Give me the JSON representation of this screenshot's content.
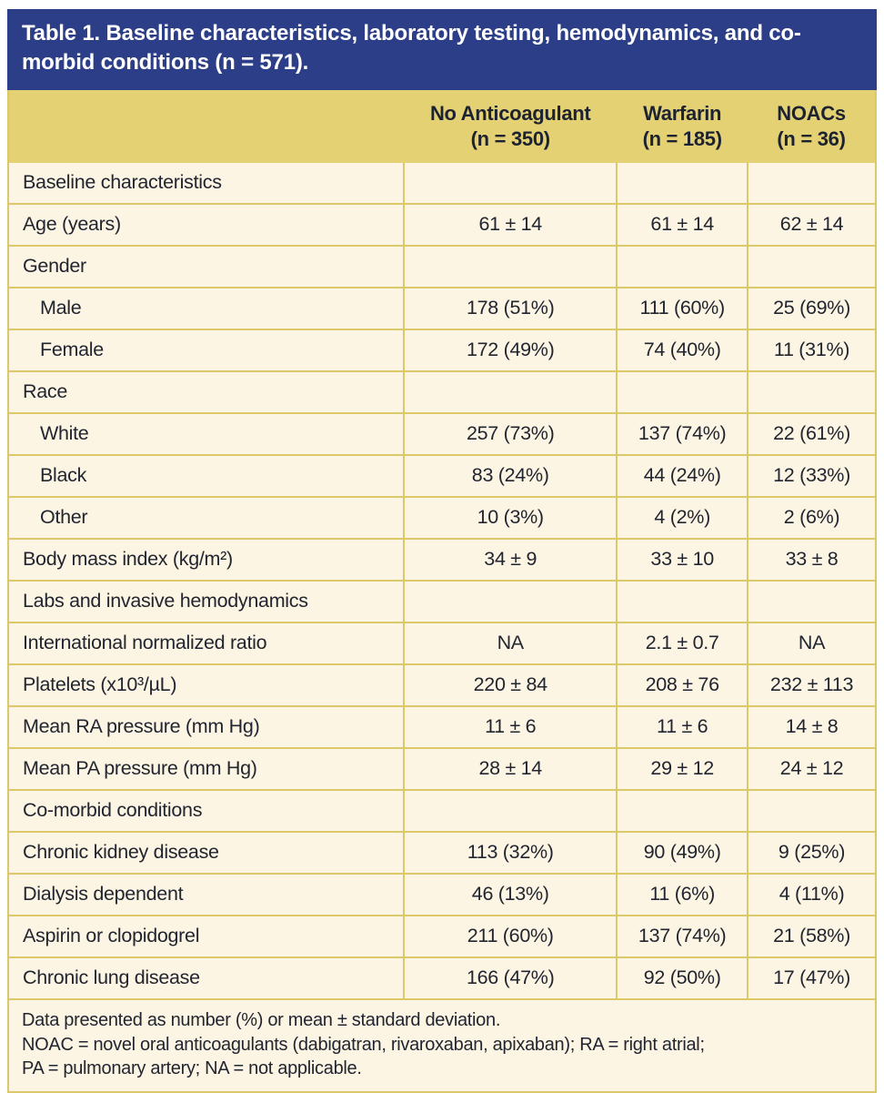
{
  "title": "Table 1. Baseline characteristics, laboratory testing, hemodynamics, and co-morbid conditions (n = 571).",
  "table": {
    "columns": [
      {
        "label": "No Anticoagulant",
        "sub": "(n = 350)"
      },
      {
        "label": "Warfarin",
        "sub": "(n = 185)"
      },
      {
        "label": "NOACs",
        "sub": "(n = 36)"
      }
    ],
    "rows": [
      {
        "label": "Baseline characteristics",
        "section": true,
        "indent": false,
        "values": [
          "",
          "",
          ""
        ]
      },
      {
        "label": "Age (years)",
        "section": false,
        "indent": false,
        "values": [
          "61 ± 14",
          "61 ± 14",
          "62 ± 14"
        ]
      },
      {
        "label": "Gender",
        "section": true,
        "indent": false,
        "values": [
          "",
          "",
          ""
        ]
      },
      {
        "label": "Male",
        "section": false,
        "indent": true,
        "values": [
          "178 (51%)",
          "111 (60%)",
          "25 (69%)"
        ]
      },
      {
        "label": "Female",
        "section": false,
        "indent": true,
        "values": [
          "172 (49%)",
          "74 (40%)",
          "11 (31%)"
        ]
      },
      {
        "label": "Race",
        "section": true,
        "indent": false,
        "values": [
          "",
          "",
          ""
        ]
      },
      {
        "label": "White",
        "section": false,
        "indent": true,
        "values": [
          "257 (73%)",
          "137 (74%)",
          "22 (61%)"
        ]
      },
      {
        "label": "Black",
        "section": false,
        "indent": true,
        "values": [
          "83 (24%)",
          "44 (24%)",
          "12 (33%)"
        ]
      },
      {
        "label": "Other",
        "section": false,
        "indent": true,
        "values": [
          "10 (3%)",
          "4 (2%)",
          "2 (6%)"
        ]
      },
      {
        "label": "Body mass index (kg/m²)",
        "section": false,
        "indent": false,
        "values": [
          "34 ± 9",
          "33 ± 10",
          "33 ± 8"
        ]
      },
      {
        "label": "Labs and invasive hemodynamics",
        "section": true,
        "indent": false,
        "values": [
          "",
          "",
          ""
        ]
      },
      {
        "label": "International normalized ratio",
        "section": false,
        "indent": false,
        "values": [
          "NA",
          "2.1 ± 0.7",
          "NA"
        ]
      },
      {
        "label": "Platelets (x10³/µL)",
        "section": false,
        "indent": false,
        "values": [
          "220 ± 84",
          "208 ± 76",
          "232 ± 113"
        ]
      },
      {
        "label": "Mean RA pressure (mm Hg)",
        "section": false,
        "indent": false,
        "values": [
          "11 ± 6",
          "11 ± 6",
          "14 ± 8"
        ]
      },
      {
        "label": "Mean PA pressure (mm Hg)",
        "section": false,
        "indent": false,
        "values": [
          "28 ± 14",
          "29 ± 12",
          "24 ± 12"
        ]
      },
      {
        "label": "Co-morbid conditions",
        "section": true,
        "indent": false,
        "values": [
          "",
          "",
          ""
        ]
      },
      {
        "label": "Chronic kidney disease",
        "section": false,
        "indent": false,
        "values": [
          "113 (32%)",
          "90 (49%)",
          "9 (25%)"
        ]
      },
      {
        "label": "Dialysis dependent",
        "section": false,
        "indent": false,
        "values": [
          "46 (13%)",
          "11 (6%)",
          "4 (11%)"
        ]
      },
      {
        "label": "Aspirin or clopidogrel",
        "section": false,
        "indent": false,
        "values": [
          "211 (60%)",
          "137 (74%)",
          "21 (58%)"
        ]
      },
      {
        "label": "Chronic lung disease",
        "section": false,
        "indent": false,
        "values": [
          "166 (47%)",
          "92 (50%)",
          "17 (47%)"
        ]
      }
    ]
  },
  "footnote_lines": [
    "Data presented as number (%) or mean ± standard deviation.",
    "NOAC = novel oral anticoagulants (dabigatran, rivaroxaban, apixaban); RA = right atrial;",
    "PA = pulmonary artery; NA = not applicable."
  ],
  "colors": {
    "title_bar_bg": "#2c3e87",
    "title_text": "#ffffff",
    "header_bg": "#e4d173",
    "body_bg": "#fdf5e3",
    "grid_border": "#dcc868",
    "body_text": "#212530"
  }
}
